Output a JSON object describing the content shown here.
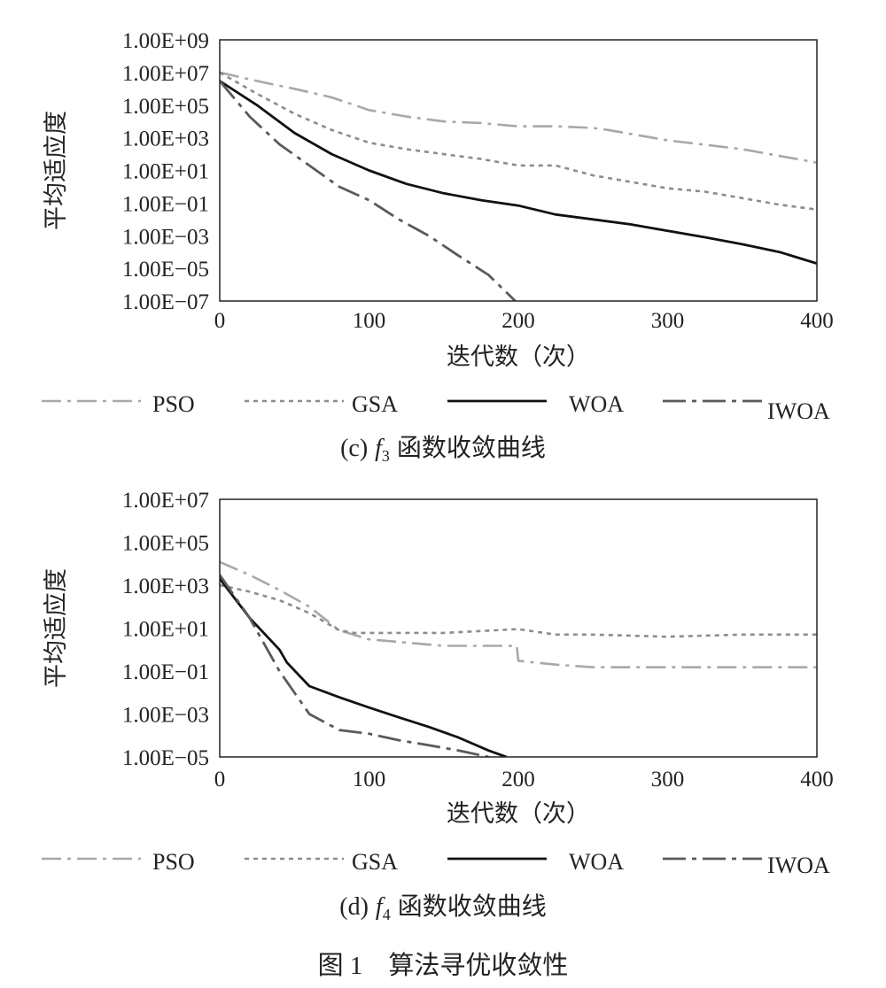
{
  "figure_caption": "图 1　算法寻优收敛性",
  "chart_data": [
    {
      "type": "line",
      "caption_prefix": "(c)",
      "caption_func": "f",
      "caption_sub": "3",
      "caption_text": "函数收敛曲线",
      "xlabel": "迭代数（次）",
      "ylabel": "平均适应度",
      "xlim": [
        0,
        400
      ],
      "x_ticks": [
        "0",
        "100",
        "200",
        "300",
        "400"
      ],
      "ylim_log10": [
        -7,
        9
      ],
      "y_scale": "log",
      "y_ticks": [
        "1.00E+09",
        "1.00E+07",
        "1.00E+05",
        "1.00E+03",
        "1.00E+01",
        "1.00E−01",
        "1.00E−03",
        "1.00E−05",
        "1.00E−07"
      ],
      "legend_position": "bottom",
      "series": [
        {
          "name": "PSO",
          "color": "#a8a8a8",
          "dash": "22,7,4,7",
          "width": 2.6,
          "x": [
            0,
            25,
            50,
            75,
            100,
            125,
            150,
            175,
            200,
            225,
            250,
            260,
            300,
            350,
            400
          ],
          "y": [
            "1e7",
            "3e6",
            "1e6",
            "3e5",
            "5e4",
            "2e4",
            "1e4",
            "8e3",
            "5e3",
            "5e3",
            "4e3",
            "3e3",
            "7e2",
            "2e2",
            "3e1"
          ]
        },
        {
          "name": "GSA",
          "color": "#8c8c8c",
          "dash": "5,5",
          "width": 2.6,
          "x": [
            0,
            25,
            50,
            75,
            100,
            125,
            150,
            175,
            200,
            225,
            250,
            275,
            300,
            325,
            350,
            375,
            400
          ],
          "y": [
            "1e7",
            "5e5",
            "3e4",
            "3e3",
            "5e2",
            "2e2",
            "1e2",
            "5e1",
            "2e1",
            "2e1",
            "5",
            "2",
            "0.8",
            "0.5",
            "0.2",
            "0.08",
            "0.04"
          ]
        },
        {
          "name": "WOA",
          "color": "#111111",
          "dash": "",
          "width": 2.8,
          "x": [
            0,
            25,
            50,
            75,
            100,
            125,
            150,
            175,
            200,
            225,
            250,
            275,
            300,
            325,
            350,
            375,
            400
          ],
          "y": [
            "3e6",
            "1e5",
            "2e3",
            "1e2",
            "1e1",
            "1.5",
            "0.4",
            "0.15",
            "0.07",
            "0.02",
            "0.01",
            "0.005",
            "0.002",
            "0.0008",
            "0.0003",
            "0.0001",
            "2e-5"
          ]
        },
        {
          "name": "IWOA",
          "color": "#5a5a5a",
          "dash": "26,7,5,7",
          "width": 2.8,
          "x": [
            0,
            20,
            40,
            60,
            80,
            100,
            120,
            140,
            160,
            180,
            198
          ],
          "y": [
            "3e6",
            "2e4",
            "4e2",
            "2e1",
            "1",
            "0.15",
            "0.01",
            "0.001",
            "6e-5",
            "4e-6",
            "1e-7"
          ]
        }
      ]
    },
    {
      "type": "line",
      "caption_prefix": "(d)",
      "caption_func": "f",
      "caption_sub": "4",
      "caption_text": "函数收敛曲线",
      "xlabel": "迭代数（次）",
      "ylabel": "平均适应度",
      "xlim": [
        0,
        400
      ],
      "x_ticks": [
        "0",
        "100",
        "200",
        "300",
        "400"
      ],
      "ylim_log10": [
        -5,
        7
      ],
      "y_scale": "log",
      "y_ticks": [
        "1.00E+07",
        "1.00E+05",
        "1.00E+03",
        "1.00E+01",
        "1.00E−01",
        "1.00E−03",
        "1.00E−05"
      ],
      "legend_position": "bottom",
      "series": [
        {
          "name": "PSO",
          "color": "#a8a8a8",
          "dash": "22,7,4,7",
          "width": 2.6,
          "x": [
            0,
            20,
            40,
            60,
            80,
            100,
            150,
            199,
            200,
            225,
            250,
            300,
            350,
            400
          ],
          "y": [
            "1.2e4",
            "3e3",
            "6e2",
            "1e2",
            "8",
            "3",
            "1.5",
            "1.5",
            "0.3",
            "0.2",
            "0.15",
            "0.15",
            "0.15",
            "0.15"
          ]
        },
        {
          "name": "GSA",
          "color": "#8c8c8c",
          "dash": "5,5",
          "width": 2.6,
          "x": [
            0,
            20,
            40,
            60,
            80,
            90,
            100,
            150,
            200,
            225,
            250,
            300,
            350,
            400
          ],
          "y": [
            "1e3",
            "5e2",
            "2e2",
            "5e1",
            "8",
            "6",
            "6",
            "6",
            "9",
            "5",
            "5",
            "4",
            "5",
            "5"
          ]
        },
        {
          "name": "WOA",
          "color": "#111111",
          "dash": "",
          "width": 2.8,
          "x": [
            0,
            20,
            40,
            45,
            60,
            80,
            100,
            120,
            140,
            160,
            180,
            192
          ],
          "y": [
            "2e3",
            "3e1",
            "1",
            "0.25",
            "0.02",
            "0.006",
            "0.002",
            "0.0007",
            "0.00025",
            "0.00008",
            "0.00002",
            "1e-5"
          ]
        },
        {
          "name": "IWOA",
          "color": "#5a5a5a",
          "dash": "26,7,5,7",
          "width": 2.8,
          "x": [
            0,
            20,
            40,
            60,
            80,
            100,
            120,
            140,
            160,
            180
          ],
          "y": [
            "3e3",
            "3e1",
            "0.1",
            "0.001",
            "0.00018",
            "0.00012",
            "0.00006",
            "0.000035",
            "0.00002",
            "1e-5"
          ]
        }
      ]
    }
  ]
}
